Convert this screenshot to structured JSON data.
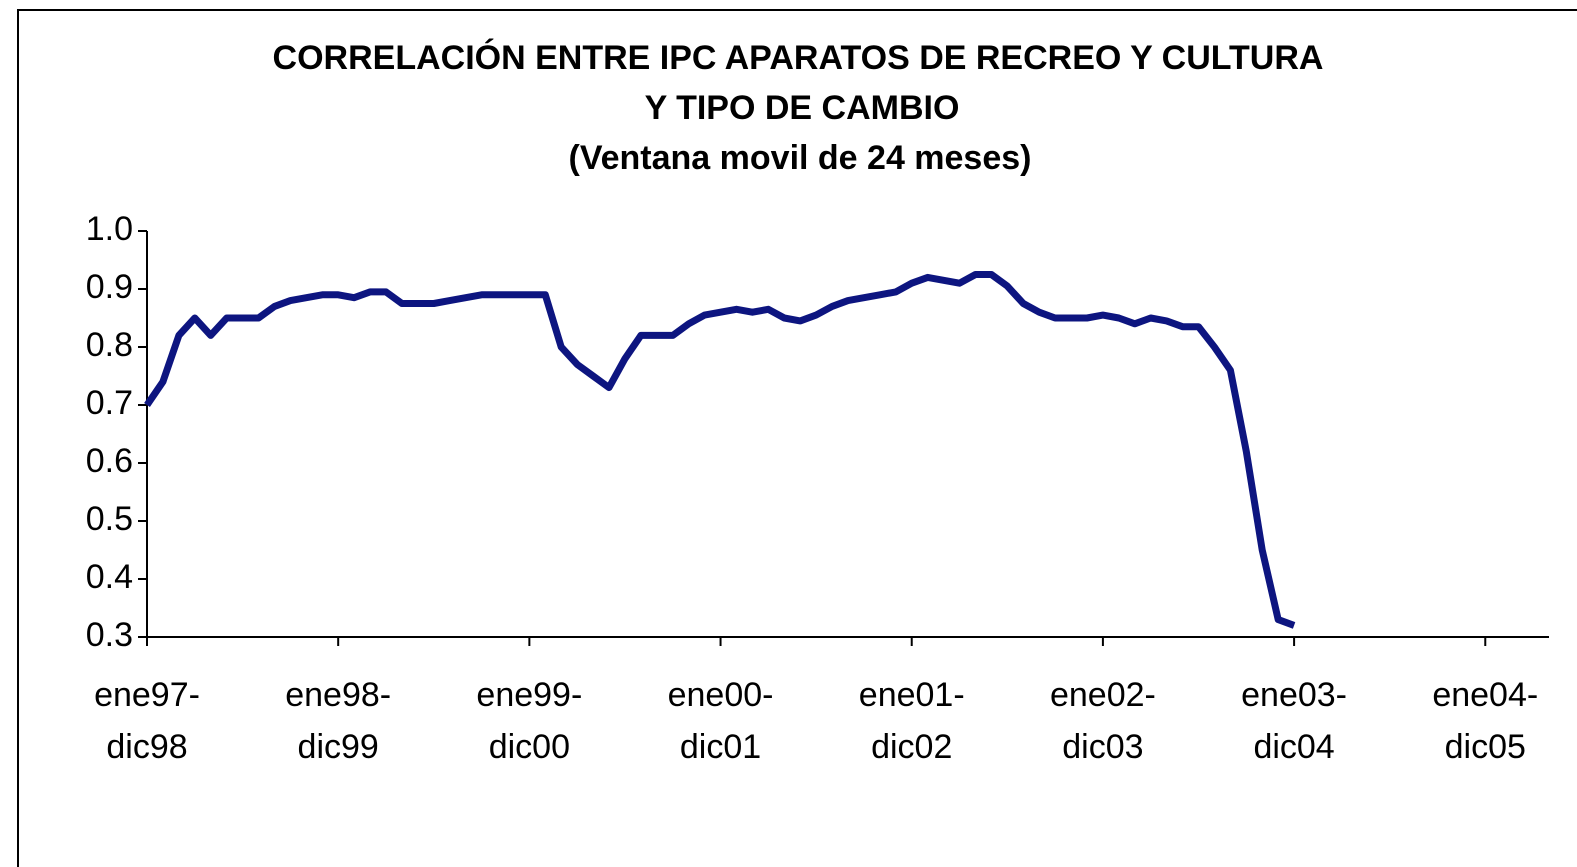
{
  "chart_data": {
    "type": "line",
    "title": [
      "CORRELACIÓN ENTRE IPC APARATOS DE RECREO Y CULTURA",
      "Y TIPO DE CAMBIO"
    ],
    "subtitle": "(Ventana movil de 24 meses)",
    "categories": [
      "ene97-dic98",
      null,
      null,
      null,
      null,
      null,
      null,
      null,
      null,
      null,
      null,
      null,
      "ene98-dic99",
      null,
      null,
      null,
      null,
      null,
      null,
      null,
      null,
      null,
      null,
      null,
      "ene99-dic00",
      null,
      null,
      null,
      null,
      null,
      null,
      null,
      null,
      null,
      null,
      null,
      "ene00-dic01",
      null,
      null,
      null,
      null,
      null,
      null,
      null,
      null,
      null,
      null,
      null,
      "ene01-dic02",
      null,
      null,
      null,
      null,
      null,
      null,
      null,
      null,
      null,
      null,
      null,
      "ene02-dic03",
      null,
      null,
      null,
      null,
      null,
      null,
      null,
      null,
      null,
      null,
      null,
      "ene03-dic04",
      null,
      null,
      null,
      null,
      null,
      null,
      null,
      null,
      null,
      null,
      null,
      "ene04-dic05",
      null,
      null,
      null,
      null
    ],
    "series": [
      {
        "color": "#0d1580",
        "values": [
          0.7,
          0.74,
          0.82,
          0.85,
          0.82,
          0.85,
          0.85,
          0.85,
          0.87,
          0.88,
          0.885,
          0.89,
          0.89,
          0.885,
          0.895,
          0.895,
          0.875,
          0.875,
          0.875,
          0.88,
          0.885,
          0.89,
          0.89,
          0.89,
          0.89,
          0.89,
          0.8,
          0.77,
          0.75,
          0.73,
          0.78,
          0.82,
          0.82,
          0.82,
          0.84,
          0.855,
          0.86,
          0.865,
          0.86,
          0.865,
          0.85,
          0.845,
          0.855,
          0.87,
          0.88,
          0.885,
          0.89,
          0.895,
          0.91,
          0.92,
          0.915,
          0.91,
          0.925,
          0.925,
          0.905,
          0.875,
          0.86,
          0.85,
          0.85,
          0.85,
          0.855,
          0.85,
          0.84,
          0.85,
          0.845,
          0.835,
          0.835,
          0.8,
          0.76,
          0.62,
          0.45,
          0.33,
          0.32,
          null,
          null,
          null,
          null,
          null,
          null,
          null,
          null,
          null,
          null,
          null,
          null,
          null,
          null,
          null,
          null
        ]
      }
    ],
    "ylim": [
      0.3,
      1.0
    ],
    "yticks": [
      0.3,
      0.4,
      0.5,
      0.6,
      0.7,
      0.8,
      0.9,
      {
        "value": 1.0,
        "label": "1.0"
      }
    ],
    "grid": false
  }
}
